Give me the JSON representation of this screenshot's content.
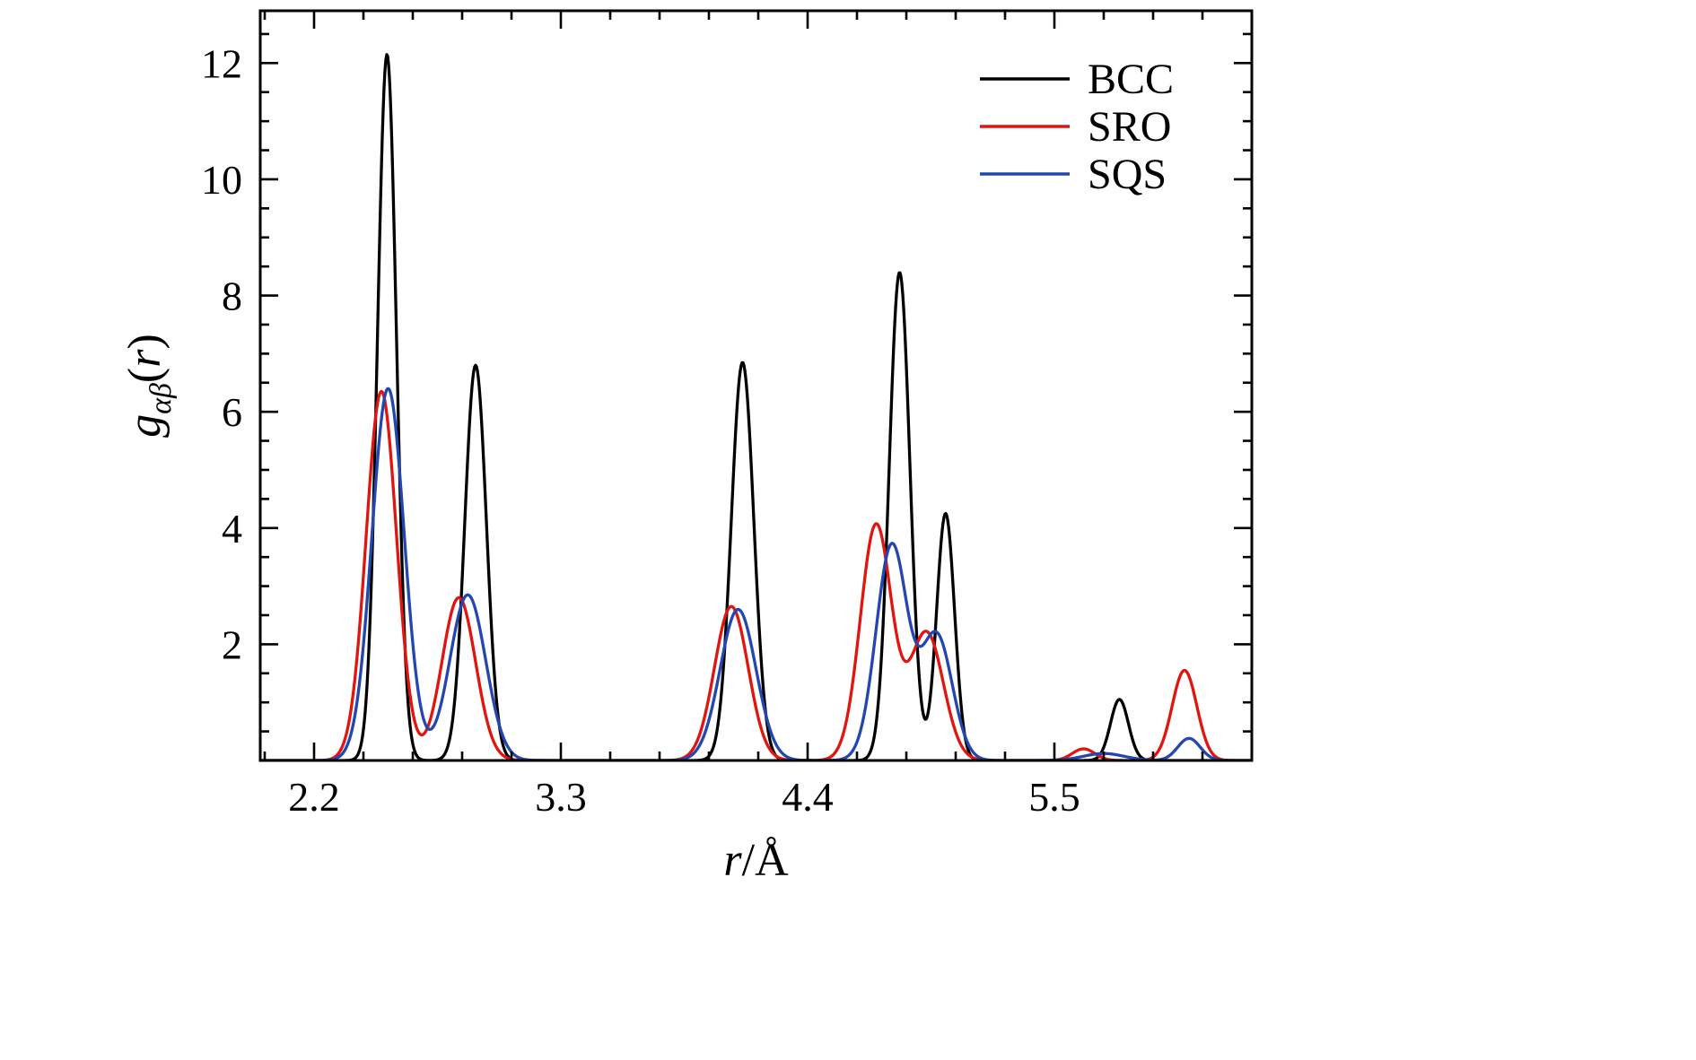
{
  "figure": {
    "background": "#ffffff",
    "frame_color": "#000000"
  },
  "chart_data": {
    "type": "line",
    "title": "",
    "xlabel_var": "r",
    "xlabel_rest": "/Å",
    "ylabel_main": "g",
    "ylabel_sub": "αβ",
    "ylabel_suffix": "(r)",
    "xlim": [
      1.96,
      6.38
    ],
    "ylim": [
      0,
      12.9
    ],
    "xticks": [
      {
        "v": 2.2,
        "label": "2.2"
      },
      {
        "v": 3.3,
        "label": "3.3"
      },
      {
        "v": 4.4,
        "label": "4.4"
      },
      {
        "v": 5.5,
        "label": "5.5"
      }
    ],
    "yticks": [
      {
        "v": 2,
        "label": "2"
      },
      {
        "v": 4,
        "label": "4"
      },
      {
        "v": 6,
        "label": "6"
      },
      {
        "v": 8,
        "label": "8"
      },
      {
        "v": 10,
        "label": "10"
      },
      {
        "v": 12,
        "label": "12"
      }
    ],
    "x_minor_step": 0.22,
    "y_minor_step": 0.5,
    "grid": false,
    "legend_position": "top-right",
    "legend": [
      {
        "label": "BCC",
        "color": "#000000"
      },
      {
        "label": "SRO",
        "color": "#e1150f"
      },
      {
        "label": "SQS",
        "color": "#2346b0"
      }
    ],
    "peak_format": "[center_r_angstrom, peak_height_g, gaussian_sigma]",
    "sample_step": 0.004,
    "series": [
      {
        "name": "BCC",
        "color": "#000000",
        "peaks": [
          [
            2.525,
            12.15,
            0.042
          ],
          [
            2.92,
            6.8,
            0.048
          ],
          [
            4.11,
            6.85,
            0.05
          ],
          [
            4.81,
            8.4,
            0.046
          ],
          [
            5.015,
            4.25,
            0.04
          ],
          [
            5.79,
            1.05,
            0.04
          ]
        ]
      },
      {
        "name": "SRO",
        "color": "#e1150f",
        "peaks": [
          [
            2.5,
            6.35,
            0.068
          ],
          [
            2.845,
            2.8,
            0.075
          ],
          [
            4.06,
            2.65,
            0.075
          ],
          [
            4.705,
            4.05,
            0.07
          ],
          [
            4.93,
            2.2,
            0.075
          ],
          [
            5.63,
            0.2,
            0.05
          ],
          [
            6.08,
            1.55,
            0.055
          ]
        ]
      },
      {
        "name": "SQS",
        "color": "#2346b0",
        "peaks": [
          [
            2.53,
            6.4,
            0.072
          ],
          [
            2.885,
            2.85,
            0.08
          ],
          [
            4.09,
            2.6,
            0.08
          ],
          [
            4.775,
            3.7,
            0.07
          ],
          [
            4.975,
            2.15,
            0.07
          ],
          [
            5.72,
            0.12,
            0.09
          ],
          [
            6.1,
            0.38,
            0.05
          ]
        ]
      }
    ]
  }
}
